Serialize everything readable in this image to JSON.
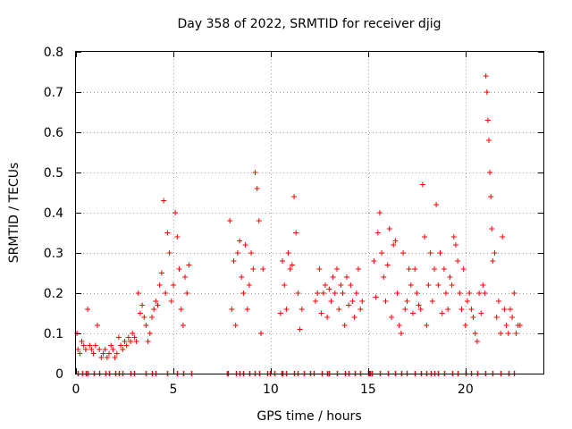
{
  "chart_data": {
    "type": "scatter",
    "title": "Day 358 of 2022, SRMTID for receiver djig",
    "xlabel": "GPS time / hours",
    "ylabel": "SRMTID / TECUs",
    "xlim": [
      0,
      24
    ],
    "ylim": [
      0,
      0.8
    ],
    "xticks": [
      0,
      5,
      10,
      15,
      20
    ],
    "xtick_labels": [
      "0",
      "5",
      "10",
      "15",
      "20"
    ],
    "yticks": [
      0,
      0.1,
      0.2,
      0.3,
      0.4,
      0.5,
      0.6,
      0.7,
      0.8
    ],
    "ytick_labels": [
      "0",
      "0.1",
      "0.2",
      "0.3",
      "0.4",
      "0.5",
      "0.6",
      "0.7",
      "0.8"
    ],
    "grid": true,
    "marker": "+",
    "color": "#ff0000",
    "series": [
      {
        "name": "SRMTID",
        "x": [
          0.05,
          0.1,
          0.2,
          0.3,
          0.4,
          0.5,
          0.6,
          0.7,
          0.8,
          0.9,
          1.0,
          1.1,
          1.2,
          1.3,
          1.4,
          1.5,
          1.6,
          1.7,
          1.8,
          1.9,
          2.0,
          2.1,
          2.2,
          2.3,
          2.4,
          2.5,
          2.6,
          2.7,
          2.8,
          2.9,
          3.0,
          3.1,
          3.2,
          3.3,
          3.4,
          3.5,
          3.6,
          3.7,
          3.8,
          3.9,
          4.0,
          4.1,
          4.2,
          4.3,
          4.4,
          4.5,
          4.6,
          4.7,
          4.8,
          4.9,
          5.0,
          5.1,
          5.2,
          5.3,
          5.4,
          5.5,
          5.6,
          5.7,
          5.8,
          7.9,
          8.0,
          8.1,
          8.2,
          8.3,
          8.4,
          8.5,
          8.6,
          8.7,
          8.8,
          8.9,
          9.0,
          9.1,
          9.2,
          9.3,
          9.4,
          9.5,
          9.6,
          10.5,
          10.6,
          10.7,
          10.8,
          10.9,
          11.0,
          11.1,
          11.2,
          11.3,
          11.4,
          11.5,
          11.6,
          12.3,
          12.4,
          12.5,
          12.6,
          12.7,
          12.8,
          12.9,
          13.0,
          13.1,
          13.2,
          13.3,
          13.4,
          13.5,
          13.6,
          13.7,
          13.8,
          13.9,
          14.0,
          14.1,
          14.2,
          14.3,
          14.4,
          14.5,
          14.6,
          14.7,
          15.3,
          15.4,
          15.5,
          15.6,
          15.7,
          15.8,
          15.9,
          16.0,
          16.1,
          16.2,
          16.3,
          16.4,
          16.5,
          16.6,
          16.7,
          16.8,
          16.9,
          17.0,
          17.1,
          17.2,
          17.3,
          17.4,
          17.5,
          17.6,
          17.7,
          17.8,
          17.9,
          18.0,
          18.1,
          18.2,
          18.3,
          18.4,
          18.5,
          18.6,
          18.7,
          18.8,
          18.9,
          19.0,
          19.1,
          19.2,
          19.3,
          19.4,
          19.5,
          19.6,
          19.7,
          19.8,
          19.9,
          20.0,
          20.1,
          20.2,
          20.3,
          20.4,
          20.5,
          20.6,
          20.7,
          20.8,
          20.9,
          21.0,
          21.05,
          21.1,
          21.15,
          21.2,
          21.25,
          21.3,
          21.35,
          21.4,
          21.5,
          21.6,
          21.7,
          21.8,
          21.9,
          22.0,
          22.1,
          22.2,
          22.3,
          22.4,
          22.5,
          22.6,
          22.7,
          22.8
        ],
        "y": [
          0.1,
          0.06,
          0.05,
          0.08,
          0.07,
          0.06,
          0.16,
          0.07,
          0.06,
          0.05,
          0.07,
          0.12,
          0.06,
          0.04,
          0.05,
          0.06,
          0.04,
          0.05,
          0.07,
          0.06,
          0.04,
          0.05,
          0.09,
          0.07,
          0.06,
          0.08,
          0.07,
          0.09,
          0.08,
          0.1,
          0.09,
          0.08,
          0.2,
          0.15,
          0.17,
          0.14,
          0.12,
          0.08,
          0.1,
          0.14,
          0.16,
          0.18,
          0.17,
          0.22,
          0.25,
          0.43,
          0.2,
          0.35,
          0.3,
          0.18,
          0.22,
          0.4,
          0.34,
          0.26,
          0.16,
          0.12,
          0.24,
          0.2,
          0.27,
          0.38,
          0.16,
          0.28,
          0.12,
          0.3,
          0.33,
          0.24,
          0.2,
          0.32,
          0.16,
          0.22,
          0.3,
          0.26,
          0.5,
          0.46,
          0.38,
          0.1,
          0.26,
          0.15,
          0.28,
          0.22,
          0.16,
          0.3,
          0.26,
          0.27,
          0.44,
          0.35,
          0.2,
          0.11,
          0.16,
          0.18,
          0.2,
          0.26,
          0.15,
          0.2,
          0.22,
          0.14,
          0.21,
          0.18,
          0.24,
          0.2,
          0.26,
          0.16,
          0.22,
          0.2,
          0.12,
          0.24,
          0.17,
          0.22,
          0.18,
          0.14,
          0.2,
          0.26,
          0.16,
          0.18,
          0.28,
          0.19,
          0.35,
          0.4,
          0.3,
          0.24,
          0.18,
          0.27,
          0.36,
          0.14,
          0.32,
          0.33,
          0.2,
          0.12,
          0.1,
          0.3,
          0.16,
          0.18,
          0.26,
          0.22,
          0.15,
          0.26,
          0.2,
          0.17,
          0.16,
          0.47,
          0.34,
          0.12,
          0.22,
          0.3,
          0.18,
          0.26,
          0.42,
          0.22,
          0.3,
          0.15,
          0.26,
          0.2,
          0.16,
          0.24,
          0.22,
          0.34,
          0.32,
          0.28,
          0.2,
          0.16,
          0.26,
          0.12,
          0.18,
          0.2,
          0.16,
          0.14,
          0.1,
          0.08,
          0.2,
          0.15,
          0.22,
          0.2,
          0.74,
          0.7,
          0.63,
          0.58,
          0.5,
          0.44,
          0.36,
          0.28,
          0.3,
          0.14,
          0.18,
          0.1,
          0.34,
          0.16,
          0.12,
          0.1,
          0.16,
          0.14,
          0.2,
          0.1,
          0.12,
          0.12
        ]
      }
    ],
    "bottom_markers_x": [
      0.1,
      0.3,
      0.5,
      0.6,
      0.9,
      1.2,
      1.5,
      1.7,
      2.0,
      2.2,
      2.4,
      2.8,
      3.0,
      3.6,
      3.9,
      4.1,
      4.7,
      5.2,
      5.5,
      5.9,
      7.75,
      7.8,
      8.2,
      8.4,
      8.6,
      8.9,
      9.2,
      9.4,
      9.8,
      9.95,
      10.2,
      10.55,
      10.6,
      10.8,
      11.2,
      11.4,
      11.7,
      12.0,
      12.2,
      12.6,
      12.9,
      13.0,
      13.4,
      13.8,
      14.0,
      14.3,
      14.6,
      15.0,
      15.05,
      15.1,
      15.2,
      15.6,
      16.0,
      16.4,
      16.7,
      17.0,
      17.4,
      17.7,
      18.0,
      18.2,
      18.4,
      18.6,
      18.9,
      19.3,
      19.6,
      20.0,
      20.3,
      20.6,
      21.0,
      21.4,
      21.8,
      22.2,
      22.5
    ]
  }
}
